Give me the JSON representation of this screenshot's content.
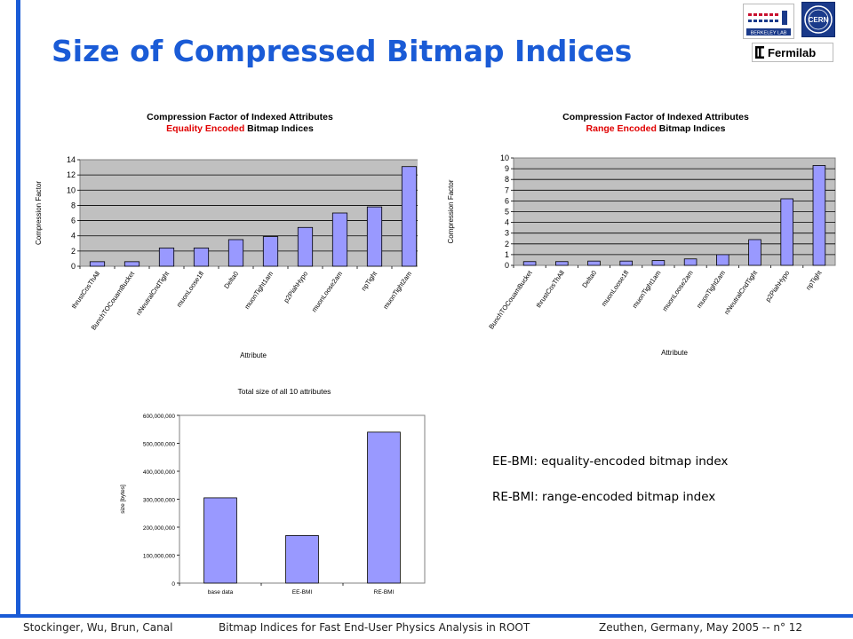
{
  "slide": {
    "title": "Size of Compressed Bitmap Indices",
    "logos": {
      "lbl_text": "BERKELEY LAB",
      "cern_text": "CERN",
      "fermilab_text": "Fermilab"
    },
    "notes": [
      "EE-BMI: equality-encoded bitmap index",
      "RE-BMI: range-encoded bitmap index"
    ],
    "footer": {
      "authors": "Stockinger, Wu, Brun, Canal",
      "talk": "Bitmap Indices for Fast End-User Physics Analysis in ROOT",
      "venue": "Zeuthen, Germany, May 2005  -- n° 12"
    }
  },
  "colors": {
    "accent": "#1a5bd6",
    "bar_fill": "#9999ff",
    "plot_bg": "#c0c0c0",
    "subtitle_red": "#e00000"
  },
  "chart_data": [
    {
      "type": "bar",
      "title": "Compression Factor of Indexed Attributes",
      "subtitle_red": "Equality Encoded",
      "subtitle_rest": " Bitmap Indices",
      "xlabel": "Attribute",
      "ylabel": "Compression Factor",
      "ylim": [
        0,
        14
      ],
      "yticks": [
        "0",
        "2",
        "4",
        "6",
        "8",
        "10",
        "12",
        "14"
      ],
      "grid": true,
      "categories": [
        "thrustCosThAll",
        "BunchTOCouamBucket",
        "nNeutralCndTight",
        "muonLoose1fl",
        "Delta0",
        "muonTight1am",
        "p2PiahHypo",
        "muonLoose2am",
        "npTight",
        "muonTight2am"
      ],
      "values": [
        0.6,
        0.6,
        2.4,
        2.4,
        3.5,
        3.9,
        5.1,
        7.0,
        7.8,
        13.1
      ]
    },
    {
      "type": "bar",
      "title": "Compression Factor of Indexed Attributes",
      "subtitle_red": "Range Encoded",
      "subtitle_rest": " Bitmap Indices",
      "xlabel": "Attribute",
      "ylabel": "Compression Factor",
      "ylim": [
        0,
        10
      ],
      "yticks": [
        "0",
        "1",
        "2",
        "3",
        "4",
        "5",
        "6",
        "7",
        "8",
        "9",
        "10"
      ],
      "grid": true,
      "categories": [
        "BunchTOCouamBucket",
        "thrustCosThAll",
        "Delta0",
        "muonLoose1fl",
        "muonTight1am",
        "muonLoose2am",
        "muonTight2am",
        "nNeutralCndTight",
        "p2PiahHypo",
        "npTight"
      ],
      "values": [
        0.35,
        0.35,
        0.4,
        0.4,
        0.45,
        0.6,
        1.0,
        2.4,
        6.2,
        9.3
      ]
    },
    {
      "type": "bar",
      "title": "Total size of all 10 attributes",
      "xlabel": "",
      "ylabel": "size [bytes]",
      "ylim": [
        0,
        600000000
      ],
      "yticks": [
        "0",
        "100,000,000",
        "200,000,000",
        "300,000,000",
        "400,000,000",
        "500,000,000",
        "600,000,000"
      ],
      "grid": false,
      "categories": [
        "base data",
        "EE-BMI",
        "RE-BMI"
      ],
      "values": [
        305000000,
        170000000,
        540000000
      ]
    }
  ]
}
